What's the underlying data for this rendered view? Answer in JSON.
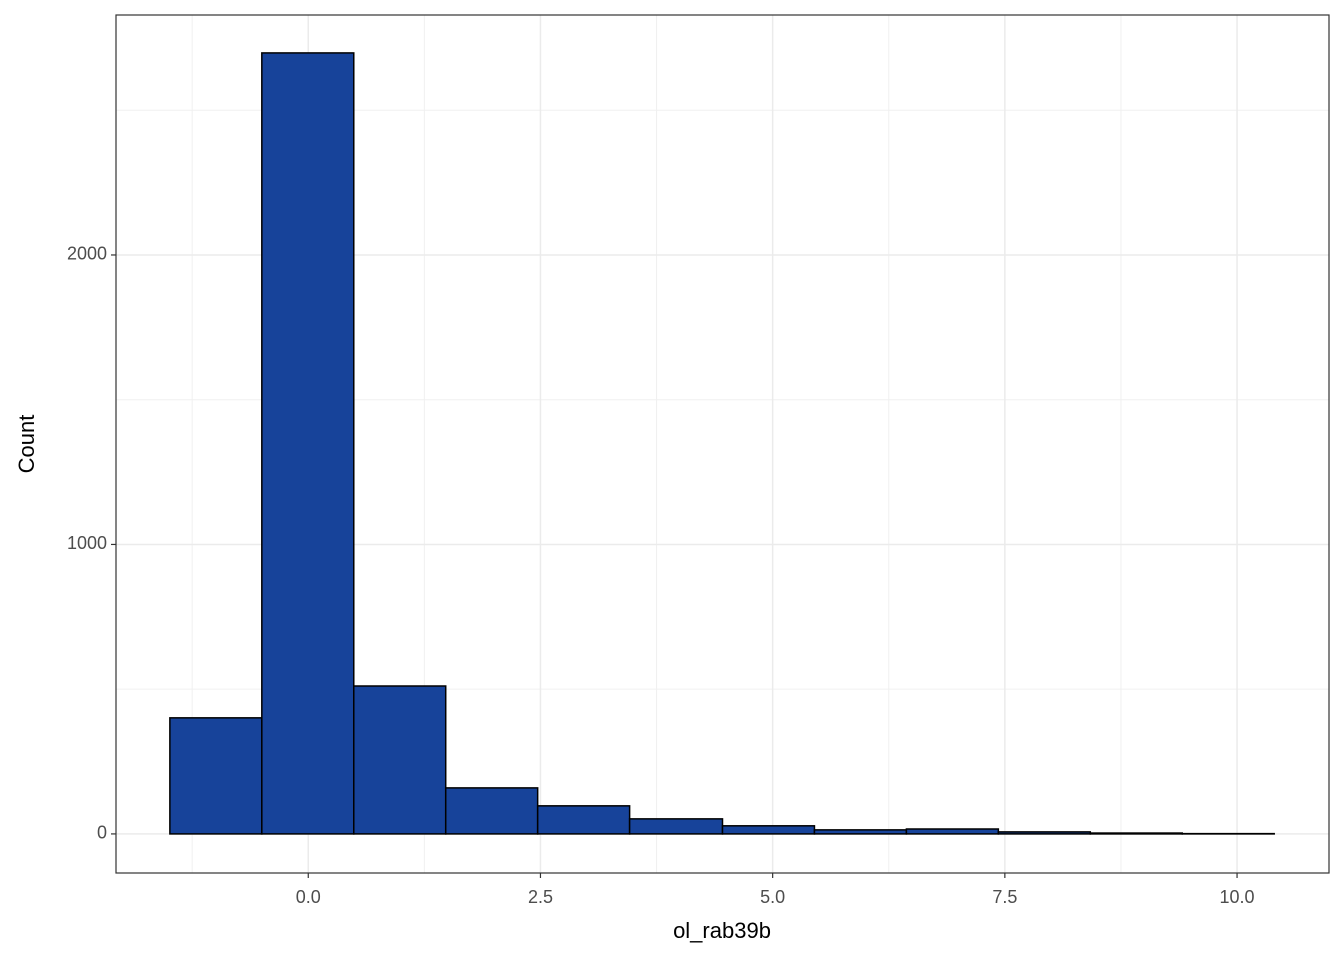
{
  "chart_data": {
    "type": "histogram",
    "x_label": "ol_rab39b",
    "y_label": "Count",
    "bins": [
      -1.49,
      -0.5,
      0.49,
      1.48,
      2.47,
      3.46,
      4.46,
      5.45,
      6.44,
      7.43,
      8.42,
      9.41,
      10.4
    ],
    "values": [
      401,
      2698,
      511,
      159,
      97,
      52,
      28,
      14,
      17,
      7,
      3,
      1
    ],
    "color": "#17439a",
    "edge_color": "#000000",
    "xlim": [
      -2.07,
      10.99
    ],
    "ylim": [
      -135,
      2829
    ],
    "xticks": [
      {
        "value": 0,
        "label": "0.0"
      },
      {
        "value": 2.5,
        "label": "2.5"
      },
      {
        "value": 5,
        "label": "5.0"
      },
      {
        "value": 7.5,
        "label": "7.5"
      },
      {
        "value": 10,
        "label": "10.0"
      }
    ],
    "yticks": [
      0,
      1000,
      2000
    ],
    "minor_xticks": [
      -1.25,
      1.25,
      3.75,
      6.25,
      8.75
    ],
    "minor_yticks": [
      500,
      1500,
      2500
    ],
    "grid": true
  }
}
